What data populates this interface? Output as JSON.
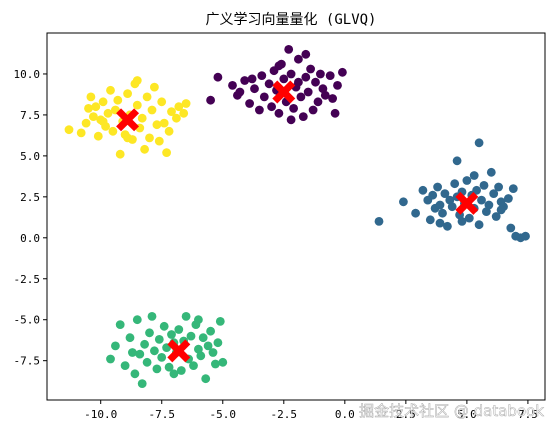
{
  "chart_data": {
    "type": "scatter",
    "title": "广义学习向量量化 (GLVQ)",
    "xlabel": "",
    "ylabel": "",
    "xlim": [
      -12.2,
      8.2
    ],
    "ylim": [
      -9.9,
      12.5
    ],
    "xticks": [
      -10.0,
      -7.5,
      -5.0,
      -2.5,
      0.0,
      2.5,
      5.0,
      7.5
    ],
    "xtick_labels": [
      "-10.0",
      "-7.5",
      "-5.0",
      "-2.5",
      "0.0",
      "2.5",
      "5.0",
      "7.5"
    ],
    "yticks": [
      -7.5,
      -5.0,
      -2.5,
      0.0,
      2.5,
      5.0,
      7.5,
      10.0
    ],
    "ytick_labels": [
      "-7.5",
      "-5.0",
      "-2.5",
      "0.0",
      "2.5",
      "5.0",
      "7.5",
      "10.0"
    ],
    "grid": false,
    "clusters": [
      {
        "color": "#440154",
        "prototype": [
          -2.5,
          8.9
        ],
        "points": [
          [
            -5.2,
            9.8
          ],
          [
            -5.5,
            8.4
          ],
          [
            -4.6,
            9.3
          ],
          [
            -4.4,
            8.7
          ],
          [
            -4.1,
            9.6
          ],
          [
            -3.9,
            8.2
          ],
          [
            -3.7,
            9.1
          ],
          [
            -3.5,
            7.8
          ],
          [
            -3.4,
            9.9
          ],
          [
            -3.3,
            8.6
          ],
          [
            -3.1,
            9.4
          ],
          [
            -3.0,
            8.0
          ],
          [
            -2.9,
            10.2
          ],
          [
            -2.8,
            9.0
          ],
          [
            -2.7,
            7.6
          ],
          [
            -2.6,
            10.6
          ],
          [
            -2.5,
            9.7
          ],
          [
            -2.4,
            8.3
          ],
          [
            -2.3,
            11.5
          ],
          [
            -2.2,
            10.0
          ],
          [
            -2.1,
            7.9
          ],
          [
            -2.0,
            9.2
          ],
          [
            -1.9,
            10.9
          ],
          [
            -1.8,
            8.6
          ],
          [
            -1.7,
            7.4
          ],
          [
            -1.6,
            9.8
          ],
          [
            -1.5,
            8.9
          ],
          [
            -1.4,
            10.3
          ],
          [
            -1.3,
            7.8
          ],
          [
            -1.2,
            9.5
          ],
          [
            -1.1,
            8.3
          ],
          [
            -1.0,
            10.0
          ],
          [
            -0.9,
            9.1
          ],
          [
            -0.8,
            8.7
          ],
          [
            -0.6,
            9.9
          ],
          [
            -0.5,
            8.5
          ],
          [
            -0.3,
            9.3
          ],
          [
            -0.1,
            10.1
          ],
          [
            -0.4,
            7.6
          ],
          [
            -1.6,
            11.2
          ],
          [
            -2.2,
            7.2
          ],
          [
            -3.8,
            9.7
          ],
          [
            -4.3,
            8.9
          ],
          [
            -2.7,
            10.5
          ],
          [
            -1.9,
            9.5
          ]
        ]
      },
      {
        "color": "#31688e",
        "prototype": [
          5.0,
          2.1
        ],
        "points": [
          [
            1.4,
            1.0
          ],
          [
            2.4,
            2.2
          ],
          [
            2.9,
            1.5
          ],
          [
            3.2,
            2.9
          ],
          [
            3.4,
            2.3
          ],
          [
            3.5,
            1.1
          ],
          [
            3.6,
            2.6
          ],
          [
            3.7,
            1.8
          ],
          [
            3.8,
            3.1
          ],
          [
            3.9,
            2.0
          ],
          [
            4.0,
            1.5
          ],
          [
            4.1,
            2.7
          ],
          [
            4.2,
            0.7
          ],
          [
            4.3,
            2.3
          ],
          [
            4.4,
            1.9
          ],
          [
            4.5,
            3.3
          ],
          [
            4.6,
            2.5
          ],
          [
            4.6,
            4.7
          ],
          [
            4.7,
            1.4
          ],
          [
            4.8,
            2.8
          ],
          [
            4.9,
            2.1
          ],
          [
            5.0,
            3.5
          ],
          [
            5.1,
            1.2
          ],
          [
            5.2,
            2.6
          ],
          [
            5.3,
            1.8
          ],
          [
            5.4,
            2.9
          ],
          [
            5.5,
            0.8
          ],
          [
            5.5,
            5.8
          ],
          [
            5.6,
            2.3
          ],
          [
            5.7,
            3.2
          ],
          [
            5.8,
            1.6
          ],
          [
            5.9,
            2.0
          ],
          [
            6.0,
            4.0
          ],
          [
            6.1,
            2.7
          ],
          [
            6.2,
            1.3
          ],
          [
            6.3,
            3.1
          ],
          [
            6.4,
            2.2
          ],
          [
            6.5,
            1.9
          ],
          [
            6.7,
            2.4
          ],
          [
            6.8,
            0.6
          ],
          [
            7.0,
            0.1
          ],
          [
            7.2,
            0.0
          ],
          [
            7.4,
            0.1
          ],
          [
            6.9,
            3.0
          ],
          [
            4.8,
            1.0
          ],
          [
            3.9,
            0.9
          ],
          [
            5.3,
            3.8
          ],
          [
            6.4,
            1.7
          ]
        ]
      },
      {
        "color": "#35b779",
        "prototype": [
          -6.8,
          -6.9
        ],
        "points": [
          [
            -9.6,
            -7.4
          ],
          [
            -9.4,
            -6.6
          ],
          [
            -9.2,
            -5.3
          ],
          [
            -9.0,
            -7.8
          ],
          [
            -8.8,
            -6.1
          ],
          [
            -8.6,
            -8.3
          ],
          [
            -8.5,
            -5.0
          ],
          [
            -8.4,
            -7.1
          ],
          [
            -8.3,
            -8.9
          ],
          [
            -8.2,
            -6.5
          ],
          [
            -8.1,
            -7.6
          ],
          [
            -8.0,
            -5.8
          ],
          [
            -7.9,
            -4.8
          ],
          [
            -7.8,
            -6.9
          ],
          [
            -7.7,
            -8.0
          ],
          [
            -7.6,
            -6.2
          ],
          [
            -7.5,
            -7.3
          ],
          [
            -7.4,
            -5.4
          ],
          [
            -7.3,
            -6.7
          ],
          [
            -7.2,
            -7.9
          ],
          [
            -7.1,
            -5.9
          ],
          [
            -7.0,
            -6.4
          ],
          [
            -6.9,
            -7.0
          ],
          [
            -6.8,
            -5.6
          ],
          [
            -6.7,
            -8.1
          ],
          [
            -6.6,
            -6.3
          ],
          [
            -6.5,
            -4.8
          ],
          [
            -6.4,
            -7.4
          ],
          [
            -6.3,
            -6.0
          ],
          [
            -6.2,
            -7.8
          ],
          [
            -6.1,
            -5.3
          ],
          [
            -6.0,
            -6.8
          ],
          [
            -5.9,
            -7.2
          ],
          [
            -5.8,
            -6.1
          ],
          [
            -5.7,
            -8.6
          ],
          [
            -5.6,
            -6.6
          ],
          [
            -5.5,
            -5.7
          ],
          [
            -5.4,
            -7.0
          ],
          [
            -5.3,
            -7.7
          ],
          [
            -5.2,
            -6.4
          ],
          [
            -5.1,
            -5.1
          ],
          [
            -5.0,
            -7.6
          ],
          [
            -8.7,
            -7.0
          ],
          [
            -7.0,
            -8.3
          ],
          [
            -6.0,
            -5.0
          ]
        ]
      },
      {
        "color": "#fde725",
        "prototype": [
          -8.9,
          7.2
        ],
        "points": [
          [
            -11.3,
            6.6
          ],
          [
            -10.8,
            6.4
          ],
          [
            -10.6,
            7.0
          ],
          [
            -10.5,
            7.9
          ],
          [
            -10.4,
            8.6
          ],
          [
            -10.3,
            7.4
          ],
          [
            -10.1,
            6.2
          ],
          [
            -10.0,
            7.2
          ],
          [
            -9.9,
            8.3
          ],
          [
            -9.8,
            6.8
          ],
          [
            -9.7,
            7.6
          ],
          [
            -9.6,
            9.0
          ],
          [
            -9.5,
            6.5
          ],
          [
            -9.4,
            7.8
          ],
          [
            -9.3,
            8.4
          ],
          [
            -9.2,
            5.1
          ],
          [
            -9.1,
            7.1
          ],
          [
            -9.0,
            6.3
          ],
          [
            -8.9,
            8.8
          ],
          [
            -8.8,
            7.5
          ],
          [
            -8.7,
            6.0
          ],
          [
            -8.6,
            9.4
          ],
          [
            -8.5,
            8.1
          ],
          [
            -8.4,
            6.7
          ],
          [
            -8.3,
            7.3
          ],
          [
            -8.2,
            5.4
          ],
          [
            -8.1,
            8.6
          ],
          [
            -8.0,
            6.1
          ],
          [
            -7.9,
            7.8
          ],
          [
            -7.8,
            9.2
          ],
          [
            -7.7,
            6.9
          ],
          [
            -7.6,
            5.9
          ],
          [
            -7.5,
            8.3
          ],
          [
            -7.4,
            7.0
          ],
          [
            -7.3,
            5.2
          ],
          [
            -7.2,
            6.5
          ],
          [
            -7.1,
            7.7
          ],
          [
            -6.9,
            7.3
          ],
          [
            -6.8,
            8.0
          ],
          [
            -6.6,
            7.6
          ],
          [
            -6.5,
            8.2
          ],
          [
            -8.9,
            6.1
          ],
          [
            -9.9,
            7.1
          ],
          [
            -8.5,
            9.6
          ],
          [
            -10.2,
            8.0
          ]
        ]
      }
    ],
    "watermark": "掘金技术社区 @ databook"
  }
}
